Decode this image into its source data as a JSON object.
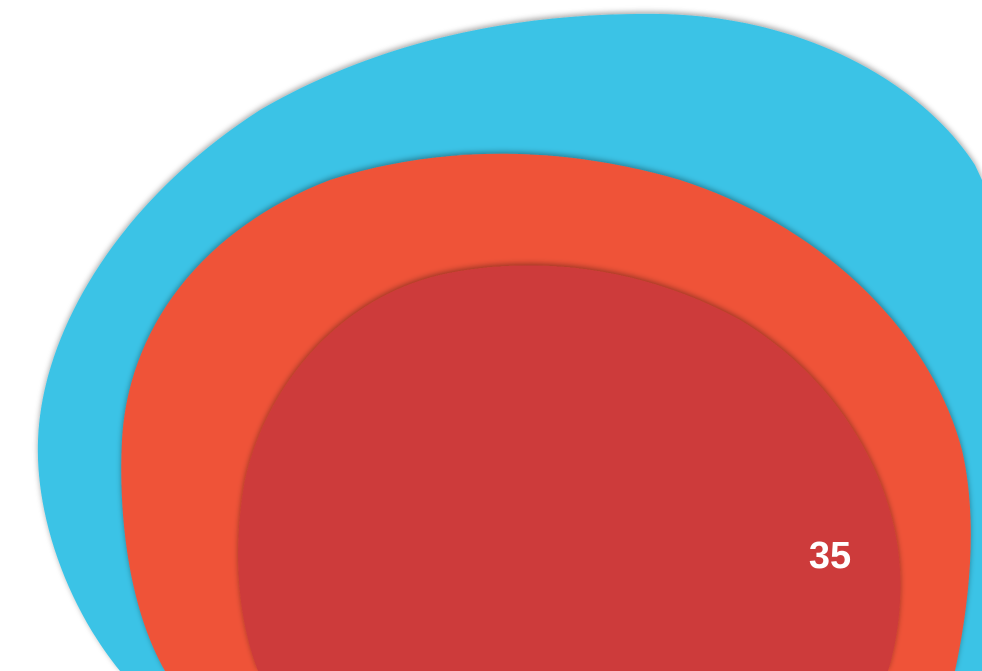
{
  "page_number": "35",
  "colors": {
    "outer_blob": "#3bc3e6",
    "middle_blob": "#ef5238",
    "inner_blob": "#cd3a3a",
    "text": "#ffffff"
  }
}
